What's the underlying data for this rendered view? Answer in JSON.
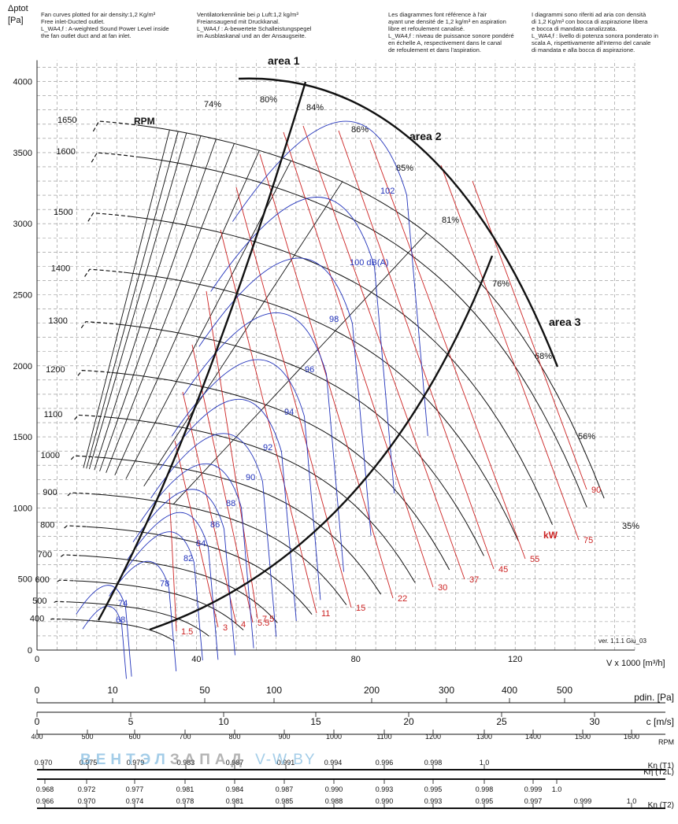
{
  "notes": [
    [
      "Fan curves plotted for air density:1,2 Kg/m³",
      "Free inlet-Ducted outlet.",
      "L_WA4,f : A-weighted Sound Power Level inside",
      "the fan outlet duct and at fan inlet."
    ],
    [
      "Ventilatorkennlinie bei ρ Luft:1,2 kg/m³",
      "Freiansaugend mit Druckkanal.",
      "L_WA4,f : A-bewertete Schalleistungspegel",
      "im Ausblaskanal und an der Ansaugseite."
    ],
    [
      "Les diagrammes font référence à l'air",
      "ayant une densité de 1,2 kg/m³ en aspiration",
      "libre et refoulement canalisé.",
      "L_WA4,f : niveau de puissance sonore pondéré",
      "en échelle A, respectivement dans le canal",
      "de refoulement et dans l'aspiration."
    ],
    [
      "I diagrammi sono riferiti ad aria con densità",
      "di 1,2 Kg/m³ con bocca di aspirazione libera",
      "e bocca di mandata canalizzata.",
      "L_WA4,f : livello di potenza sonora ponderato in",
      "scala A, rispettivamente all'interno del canale",
      "di mandata e alla bocca di aspirazione."
    ]
  ],
  "watermark": {
    "part1": "ВЕНТЭЛ",
    "part2": "ЗАПАД",
    "part3": "V-W.BY"
  },
  "chart_data": {
    "type": "line",
    "ylabel": "Δptot\n[Pa]",
    "xlabel": "V x 1000 [m³/h]",
    "xlim": [
      0,
      150
    ],
    "ylim": [
      0,
      4000
    ],
    "x_ticks": [
      0,
      40,
      80,
      120
    ],
    "y_ticks": [
      0,
      500,
      1000,
      1500,
      2000,
      2500,
      3000,
      3500,
      4000
    ],
    "grid": true,
    "rpm_title": "RPM",
    "rpm_curves": [
      {
        "rpm": "400",
        "shutoff": 220,
        "vmax": 37.5
      },
      {
        "rpm": "500",
        "shutoff": 343,
        "vmax": 46.9
      },
      {
        "rpm": "600",
        "shutoff": 494,
        "vmax": 56.3
      },
      {
        "rpm": "700",
        "shutoff": 673,
        "vmax": 65.6
      },
      {
        "rpm": "800",
        "shutoff": 879,
        "vmax": 75
      },
      {
        "rpm": "900",
        "shutoff": 1112,
        "vmax": 84.4
      },
      {
        "rpm": "1000",
        "shutoff": 1373,
        "vmax": 93.8
      },
      {
        "rpm": "1100",
        "shutoff": 1661,
        "vmax": 103.1
      },
      {
        "rpm": "1200",
        "shutoff": 1977,
        "vmax": 112.5
      },
      {
        "rpm": "1300",
        "shutoff": 2321,
        "vmax": 121.9
      },
      {
        "rpm": "1400",
        "shutoff": 2691,
        "vmax": 131.3
      },
      {
        "rpm": "1500",
        "shutoff": 3089,
        "vmax": 140.6
      },
      {
        "rpm": "1600",
        "shutoff": 3515,
        "vmax": 150
      },
      {
        "rpm": "1650",
        "shutoff": 3738,
        "vmax": 154.7
      }
    ],
    "efficiency_labels": [
      "74%",
      "80%",
      "84%",
      "86%",
      "85%",
      "81%",
      "76%",
      "68%",
      "56%",
      "35%"
    ],
    "sound_labels": [
      "68",
      "74",
      "78",
      "82",
      "84",
      "86",
      "88",
      "90",
      "92",
      "94",
      "96",
      "98",
      "100 dB(A)",
      "102"
    ],
    "power_labels": [
      "1.5",
      "3",
      "4",
      "5.5",
      "7.5",
      "11",
      "15",
      "22",
      "30",
      "37",
      "45",
      "55",
      "75",
      "90"
    ],
    "power_unit": "kW",
    "area_labels": [
      "area 1",
      "area 2",
      "area 3"
    ],
    "version": "ver. 1.1.1 Giu_03"
  },
  "scales": [
    {
      "label": "pdin. [Pa]",
      "ticks": [
        "0",
        "10",
        "50",
        "100",
        "200",
        "300",
        "400",
        "500"
      ]
    },
    {
      "label": "c [m/s]",
      "ticks": [
        "0",
        "5",
        "10",
        "15",
        "20",
        "25",
        "30"
      ]
    },
    {
      "label": "RPM",
      "ticks": [
        "400",
        "500",
        "600",
        "700",
        "800",
        "900",
        "1000",
        "1100",
        "1200",
        "1300",
        "1400",
        "1500",
        "1600"
      ]
    },
    {
      "label": "Kη (T1)",
      "ticks": [
        "0.970",
        "0.975",
        "0.979",
        "0.983",
        "0.987",
        "0.991",
        "0.994",
        "0.996",
        "0.998",
        "1.0"
      ]
    },
    {
      "label": "Kη (T2L)",
      "ticks": [
        "0.968",
        "0.972",
        "0.977",
        "0.981",
        "0.984",
        "0.987",
        "0.990",
        "0.993",
        "0.995",
        "0.998",
        "0.999",
        "1.0"
      ]
    },
    {
      "label": "Kη (T2)",
      "ticks": [
        "0.966",
        "0.970",
        "0.974",
        "0.978",
        "0.981",
        "0.985",
        "0.988",
        "0.990",
        "0.993",
        "0.995",
        "0.997",
        "0.999",
        "1.0"
      ]
    }
  ]
}
